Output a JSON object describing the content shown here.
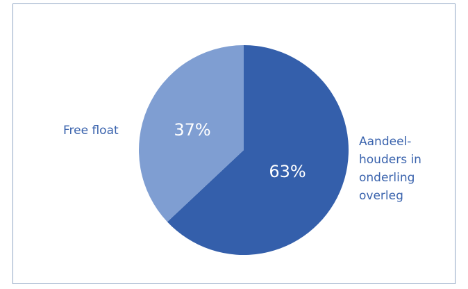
{
  "chart_data": {
    "type": "pie",
    "start_angle_deg": 0,
    "direction": "clockwise",
    "slices": [
      {
        "label_lines": [
          "Aandeel-",
          "houders in",
          "onderling",
          "overleg"
        ],
        "value": 63,
        "value_label": "63%",
        "color": "#345fab"
      },
      {
        "label_lines": [
          "Free float"
        ],
        "value": 37,
        "value_label": "37%",
        "color": "#7f9ed2"
      }
    ]
  }
}
